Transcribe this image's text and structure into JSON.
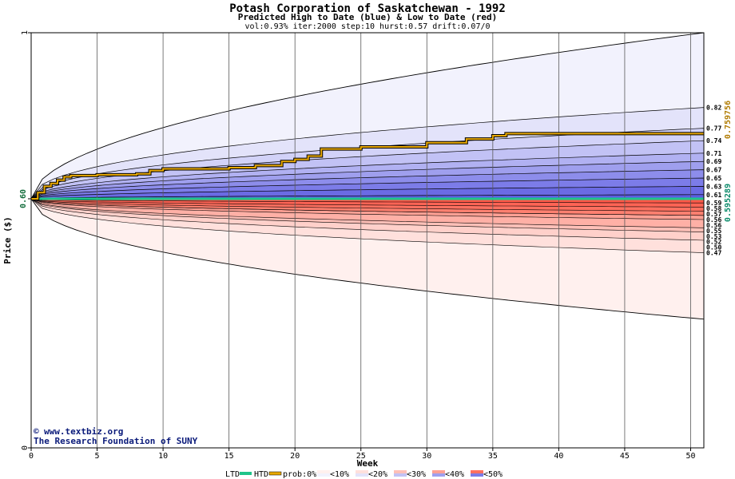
{
  "chart_data": {
    "type": "area",
    "title": "Potash Corporation of Saskatchewan  - 1992",
    "subtitle": "Predicted High to Date (blue) &  Low to Date (red)",
    "params": "vol:0.93% iter:2000 step:10 hurst:0.57 drift:0.07/0",
    "xlabel": "Week",
    "ylabel": "Price ($)",
    "xlim": [
      0,
      51
    ],
    "ylim": [
      0,
      1
    ],
    "x_ticks": [
      0,
      5,
      10,
      15,
      20,
      25,
      30,
      35,
      40,
      45,
      50
    ],
    "y_ticks": [
      0,
      1
    ],
    "start_price": "0.60",
    "start_value": 0.6,
    "grid": true,
    "high_labels": [
      "0.82",
      "0.77",
      "0.74",
      "0.71",
      "0.69",
      "0.67",
      "0.65",
      "0.63",
      "0.61"
    ],
    "low_labels": [
      "0.59",
      "0.58",
      "0.57",
      "0.56",
      "0.56",
      "0.55",
      "0.53",
      "0.52",
      "0.50",
      "0.47"
    ],
    "high_bands": [
      {
        "end": 0.82
      },
      {
        "end": 0.77
      },
      {
        "end": 0.74
      },
      {
        "end": 0.71
      },
      {
        "end": 0.69
      },
      {
        "end": 0.67
      },
      {
        "end": 0.65
      },
      {
        "end": 0.63
      },
      {
        "end": 0.61
      }
    ],
    "low_bands": [
      {
        "end": 0.59
      },
      {
        "end": 0.58
      },
      {
        "end": 0.57
      },
      {
        "end": 0.56
      },
      {
        "end": 0.56
      },
      {
        "end": 0.55
      },
      {
        "end": 0.53
      },
      {
        "end": 0.52
      },
      {
        "end": 0.5
      },
      {
        "end": 0.47
      }
    ],
    "outer_high_end": 1.0,
    "outer_low_end": 0.31,
    "htd_series": {
      "name": "HTD",
      "points": [
        [
          0,
          0.6
        ],
        [
          0.5,
          0.615
        ],
        [
          1,
          0.63
        ],
        [
          1.5,
          0.637
        ],
        [
          2,
          0.645
        ],
        [
          2.5,
          0.653
        ],
        [
          3,
          0.656
        ],
        [
          5,
          0.658
        ],
        [
          8,
          0.66
        ],
        [
          9,
          0.668
        ],
        [
          10,
          0.672
        ],
        [
          15,
          0.675
        ],
        [
          17,
          0.68
        ],
        [
          19,
          0.69
        ],
        [
          20,
          0.695
        ],
        [
          21,
          0.703
        ],
        [
          22,
          0.72
        ],
        [
          25,
          0.725
        ],
        [
          30,
          0.735
        ],
        [
          33,
          0.744
        ],
        [
          35,
          0.752
        ],
        [
          36,
          0.757
        ],
        [
          51,
          0.757
        ]
      ]
    },
    "ltd_series": {
      "name": "LTD",
      "points": [
        [
          0,
          0.6
        ],
        [
          51,
          0.6
        ]
      ]
    },
    "right_value_high": "0.759756",
    "right_value_low": "0.595289",
    "colors": {
      "htd": "#e8a800",
      "ltd": "#1fc48a",
      "right_high": "#b07b00",
      "right_low": "#0b8a6a"
    },
    "legend": {
      "ltd": "LTD",
      "htd": "HTD",
      "prob_prefix": "prob:0%",
      "items": [
        "<10%",
        "<20%",
        "<30%",
        "<40%",
        "<50%"
      ]
    },
    "credit_line1": "www.textbiz.org",
    "credit_line2": "The Research Foundation of SUNY",
    "credit_symbol": "©"
  }
}
